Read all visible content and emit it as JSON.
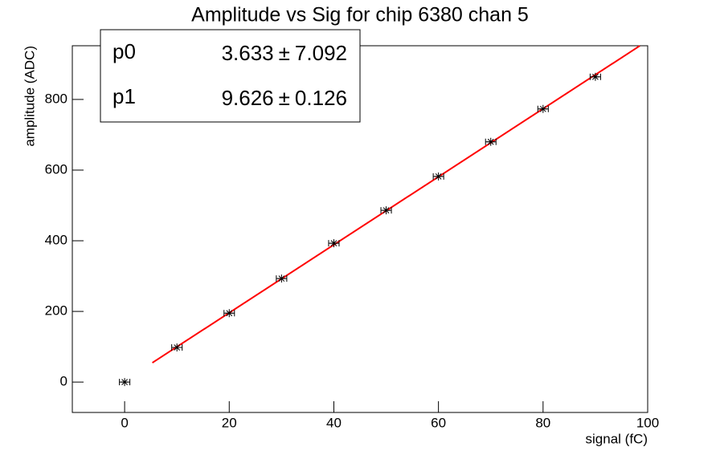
{
  "chart_data": {
    "type": "scatter",
    "title": "Amplitude vs Sig for chip 6380 chan 5",
    "x_label": "signal (fC)",
    "y_label": "amplitude (ADC)",
    "x": [
      0,
      10,
      20,
      30,
      40,
      50,
      60,
      70,
      80,
      90
    ],
    "values": [
      0,
      98,
      195,
      293,
      393,
      486,
      582,
      680,
      773,
      864
    ],
    "xerr": [
      1,
      1,
      1,
      1,
      1,
      1,
      1,
      1,
      1,
      1
    ],
    "color": "#000000",
    "xlim": [
      -10,
      100
    ],
    "ylim": [
      -86,
      952
    ],
    "xticks": [
      0,
      20,
      40,
      60,
      80,
      100
    ],
    "yticks": [
      0,
      200,
      400,
      600,
      800
    ],
    "grid": false,
    "fit": {
      "color": "#ff0000",
      "range": [
        5.3,
        98.5
      ],
      "pm": "±",
      "p0": {
        "name": "p0",
        "value": 3.633,
        "error": 7.092
      },
      "p1": {
        "name": "p1",
        "value": 9.626,
        "error": 0.126
      }
    }
  }
}
